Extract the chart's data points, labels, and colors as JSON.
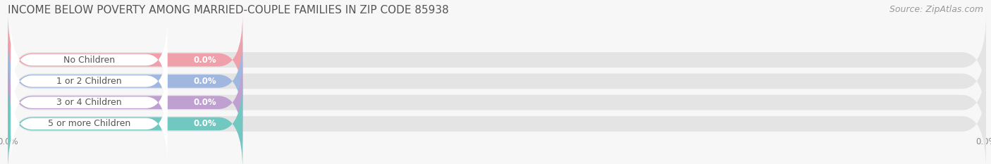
{
  "title": "INCOME BELOW POVERTY AMONG MARRIED-COUPLE FAMILIES IN ZIP CODE 85938",
  "source": "Source: ZipAtlas.com",
  "categories": [
    "No Children",
    "1 or 2 Children",
    "3 or 4 Children",
    "5 or more Children"
  ],
  "values": [
    0.0,
    0.0,
    0.0,
    0.0
  ],
  "bar_colors": [
    "#f0a0aa",
    "#a0b8e0",
    "#c0a0d0",
    "#70c8c0"
  ],
  "bar_bg_color": "#e4e4e4",
  "background_color": "#f7f7f7",
  "label_color": "#555555",
  "value_color": "#ffffff",
  "title_color": "#555555",
  "source_color": "#999999",
  "title_fontsize": 11,
  "label_fontsize": 9,
  "value_fontsize": 8.5,
  "source_fontsize": 9,
  "tick_fontsize": 8.5,
  "tick_color": "#888888"
}
